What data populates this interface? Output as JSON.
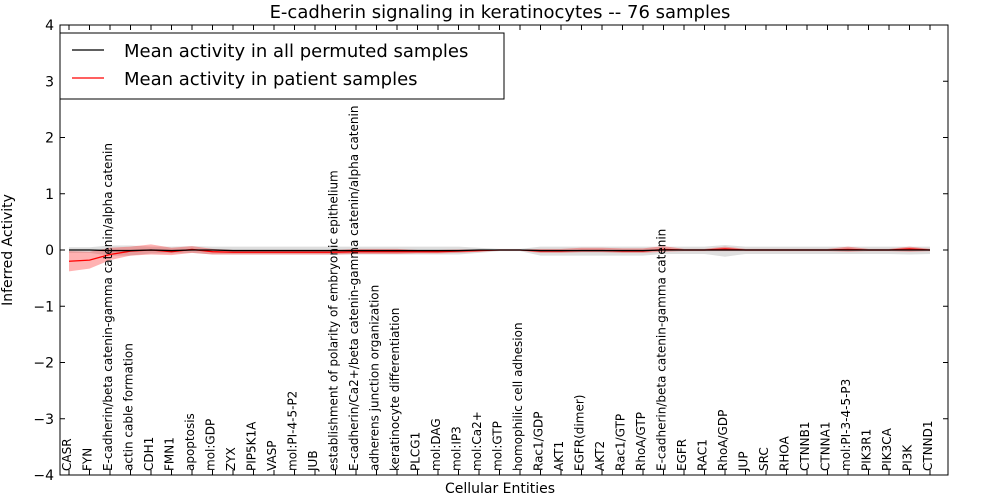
{
  "chart_data": {
    "type": "line",
    "title": "E-cadherin signaling in keratinocytes -- 76 samples",
    "xlabel": "Cellular Entities",
    "ylabel": "Inferred Activity",
    "ylim": [
      -4,
      4
    ],
    "yticks": [
      -4,
      -3,
      -2,
      -1,
      0,
      1,
      2,
      3,
      4
    ],
    "legend_position": "top-left",
    "categories": [
      "CASR",
      "FYN",
      "E-cadherin/beta catenin-gamma catenin/alpha catenin",
      "actin cable formation",
      "CDH1",
      "FMN1",
      "apoptosis",
      "mol:GDP",
      "ZYX",
      "PIP5K1A",
      "VASP",
      "mol:PI-4-5-P2",
      "JUB",
      "establishment of polarity of embryonic epithelium",
      "E-cadherin/Ca2+/beta catenin-gamma catenin/alpha catenin",
      "adherens junction organization",
      "keratinocyte differentiation",
      "PLCG1",
      "mol:DAG",
      "mol:IP3",
      "mol:Ca2+",
      "mol:GTP",
      "homophilic cell adhesion",
      "Rac1/GDP",
      "AKT1",
      "EGFR(dimer)",
      "AKT2",
      "Rac1/GTP",
      "RhoA/GTP",
      "E-cadherin/beta catenin-gamma catenin",
      "EGFR",
      "RAC1",
      "RhoA/GDP",
      "JUP",
      "SRC",
      "RHOA",
      "CTNNB1",
      "CTNNA1",
      "mol:PI-3-4-5-P3",
      "PIK3R1",
      "PIK3CA",
      "PI3K",
      "CTNND1"
    ],
    "series": [
      {
        "name": "Mean activity in all permuted samples",
        "color": "#000000",
        "values": [
          0.0,
          0.0,
          -0.01,
          -0.01,
          0.0,
          -0.01,
          0.0,
          0.0,
          -0.01,
          -0.01,
          -0.01,
          -0.01,
          -0.01,
          -0.01,
          -0.01,
          -0.01,
          -0.01,
          -0.01,
          -0.01,
          -0.01,
          0.0,
          0.0,
          0.0,
          -0.01,
          -0.01,
          -0.01,
          -0.01,
          -0.01,
          -0.01,
          0.0,
          0.0,
          0.0,
          0.0,
          0.0,
          0.0,
          0.0,
          0.0,
          0.0,
          0.0,
          0.0,
          0.0,
          0.0,
          0.0
        ],
        "band_low": [
          -0.05,
          -0.05,
          -0.1,
          -0.1,
          -0.06,
          -0.06,
          -0.05,
          -0.08,
          -0.08,
          -0.08,
          -0.08,
          -0.08,
          -0.08,
          -0.08,
          -0.08,
          -0.08,
          -0.08,
          -0.08,
          -0.08,
          -0.08,
          -0.05,
          -0.02,
          -0.02,
          -0.1,
          -0.1,
          -0.1,
          -0.1,
          -0.1,
          -0.1,
          -0.07,
          -0.07,
          -0.07,
          -0.12,
          -0.07,
          -0.07,
          -0.07,
          -0.07,
          -0.07,
          -0.07,
          -0.07,
          -0.07,
          -0.08,
          -0.07
        ],
        "band_high": [
          0.05,
          0.05,
          0.08,
          0.08,
          0.06,
          0.06,
          0.07,
          0.06,
          0.06,
          0.06,
          0.06,
          0.06,
          0.06,
          0.06,
          0.06,
          0.06,
          0.06,
          0.06,
          0.06,
          0.06,
          0.04,
          0.02,
          0.02,
          0.06,
          0.06,
          0.06,
          0.06,
          0.06,
          0.06,
          0.06,
          0.06,
          0.06,
          0.09,
          0.06,
          0.06,
          0.06,
          0.06,
          0.06,
          0.06,
          0.06,
          0.06,
          0.06,
          0.06
        ]
      },
      {
        "name": "Mean activity in patient samples",
        "color": "#ff0000",
        "values": [
          -0.2,
          -0.18,
          -0.08,
          -0.02,
          0.0,
          -0.03,
          0.01,
          -0.03,
          -0.04,
          -0.04,
          -0.04,
          -0.04,
          -0.04,
          -0.04,
          -0.03,
          -0.03,
          -0.03,
          -0.03,
          -0.03,
          -0.02,
          -0.01,
          0.0,
          0.0,
          -0.02,
          -0.02,
          -0.01,
          -0.01,
          -0.02,
          -0.02,
          0.01,
          0.0,
          0.0,
          0.02,
          0.0,
          0.0,
          0.0,
          0.0,
          0.0,
          0.01,
          0.0,
          0.0,
          0.02,
          0.0
        ],
        "band_low": [
          -0.38,
          -0.33,
          -0.18,
          -0.1,
          -0.08,
          -0.09,
          -0.05,
          -0.08,
          -0.08,
          -0.08,
          -0.08,
          -0.08,
          -0.08,
          -0.08,
          -0.07,
          -0.07,
          -0.07,
          -0.06,
          -0.06,
          -0.05,
          -0.03,
          -0.01,
          -0.01,
          -0.05,
          -0.05,
          -0.04,
          -0.04,
          -0.05,
          -0.05,
          -0.03,
          -0.02,
          -0.02,
          -0.02,
          -0.02,
          -0.02,
          -0.02,
          -0.02,
          -0.02,
          -0.03,
          -0.02,
          -0.02,
          -0.03,
          -0.02
        ],
        "band_high": [
          -0.02,
          -0.03,
          0.04,
          0.06,
          0.1,
          0.04,
          0.07,
          0.02,
          0.0,
          0.0,
          0.0,
          0.0,
          0.0,
          0.0,
          0.02,
          0.02,
          0.02,
          0.0,
          0.0,
          0.01,
          0.01,
          0.01,
          0.01,
          0.02,
          0.02,
          0.04,
          0.04,
          0.03,
          0.03,
          0.07,
          0.02,
          0.02,
          0.06,
          0.02,
          0.02,
          0.02,
          0.02,
          0.02,
          0.06,
          0.02,
          0.02,
          0.06,
          0.02
        ]
      }
    ]
  }
}
